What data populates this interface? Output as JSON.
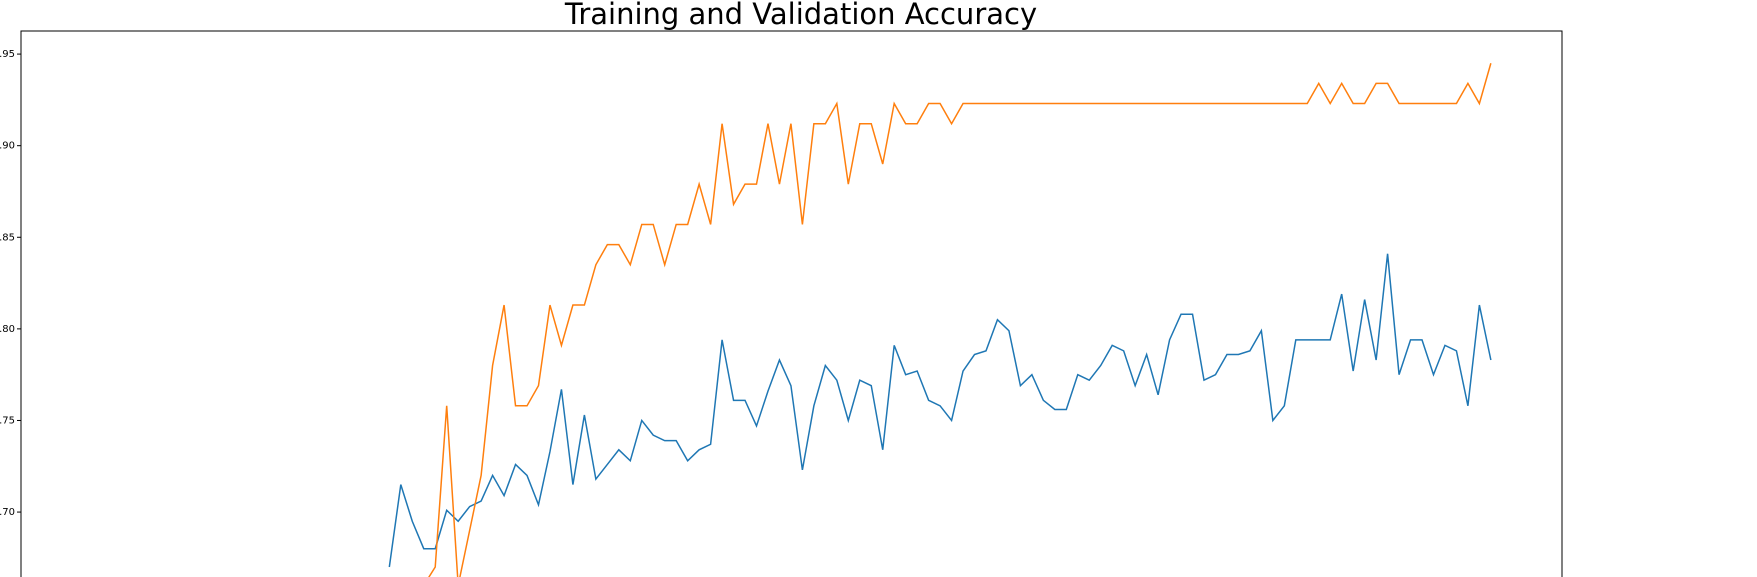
{
  "chart_data": {
    "type": "line",
    "title": "Training and Validation Accuracy",
    "x": [
      26,
      27,
      28,
      29,
      30,
      31,
      32,
      33,
      34,
      35,
      36,
      37,
      38,
      39,
      40,
      41,
      42,
      43,
      44,
      45,
      46,
      47,
      48,
      49,
      50,
      51,
      52,
      53,
      54,
      55,
      56,
      57,
      58,
      59,
      60,
      61,
      62,
      63,
      64,
      65,
      66,
      67,
      68,
      69,
      70,
      71,
      72,
      73,
      74,
      75,
      76,
      77,
      78,
      79,
      80,
      81,
      82,
      83,
      84,
      85,
      86,
      87,
      88,
      89,
      90,
      91,
      92,
      93,
      94,
      95,
      96,
      97,
      98,
      99,
      100,
      101,
      102,
      103,
      104,
      105,
      106,
      107,
      108,
      109,
      110,
      111,
      112,
      113,
      114,
      115,
      116,
      117,
      118,
      119,
      120,
      121,
      122
    ],
    "series": [
      {
        "color": "#1f77b4",
        "values": [
          0.67,
          0.715,
          0.695,
          0.68,
          0.68,
          0.701,
          0.695,
          0.703,
          0.706,
          0.72,
          0.709,
          0.726,
          0.72,
          0.704,
          0.733,
          0.767,
          0.715,
          0.753,
          0.718,
          0.726,
          0.734,
          0.728,
          0.75,
          0.742,
          0.739,
          0.739,
          0.728,
          0.734,
          0.737,
          0.794,
          0.761,
          0.761,
          0.747,
          0.766,
          0.783,
          0.769,
          0.723,
          0.758,
          0.78,
          0.772,
          0.75,
          0.772,
          0.769,
          0.734,
          0.791,
          0.775,
          0.777,
          0.761,
          0.758,
          0.75,
          0.777,
          0.786,
          0.788,
          0.805,
          0.799,
          0.769,
          0.775,
          0.761,
          0.756,
          0.756,
          0.775,
          0.772,
          0.78,
          0.791,
          0.788,
          0.769,
          0.786,
          0.764,
          0.794,
          0.808,
          0.808,
          0.772,
          0.775,
          0.786,
          0.786,
          0.788,
          0.799,
          0.75,
          0.758,
          0.794,
          0.794,
          0.794,
          0.794,
          0.819,
          0.777,
          0.816,
          0.783,
          0.841,
          0.775,
          0.794,
          0.794,
          0.775,
          0.791,
          0.788,
          0.758,
          0.813,
          0.783
        ]
      },
      {
        "color": "#ff7f0e",
        "values": [
          null,
          null,
          null,
          0.66,
          0.67,
          0.758,
          0.66,
          0.69,
          0.72,
          0.78,
          0.813,
          0.758,
          0.758,
          0.769,
          0.813,
          0.791,
          0.813,
          0.813,
          0.835,
          0.846,
          0.846,
          0.835,
          0.857,
          0.857,
          0.835,
          0.857,
          0.857,
          0.879,
          0.857,
          0.912,
          0.868,
          0.879,
          0.879,
          0.912,
          0.879,
          0.912,
          0.857,
          0.912,
          0.912,
          0.923,
          0.879,
          0.912,
          0.912,
          0.89,
          0.923,
          0.912,
          0.912,
          0.923,
          0.923,
          0.912,
          0.923,
          0.923,
          0.923,
          0.923,
          0.923,
          0.923,
          0.923,
          0.923,
          0.923,
          0.923,
          0.923,
          0.923,
          0.923,
          0.923,
          0.923,
          0.923,
          0.923,
          0.923,
          0.923,
          0.923,
          0.923,
          0.923,
          0.923,
          0.923,
          0.923,
          0.923,
          0.923,
          0.923,
          0.923,
          0.923,
          0.923,
          0.934,
          0.923,
          0.934,
          0.923,
          0.923,
          0.934,
          0.934,
          0.923,
          0.923,
          0.923,
          0.923,
          0.923,
          0.923,
          0.934,
          0.923,
          0.945
        ]
      }
    ],
    "xlim": [
      -6.1,
      128.2
    ],
    "ylim": [
      0.652,
      0.9626
    ],
    "yticks": [
      {
        "value": 0.7,
        "label": "0.70"
      },
      0.75,
      {
        "value": 0.8,
        "label": "0.80"
      },
      0.85,
      {
        "value": 0.9,
        "label": "0.90"
      },
      0.95
    ]
  }
}
